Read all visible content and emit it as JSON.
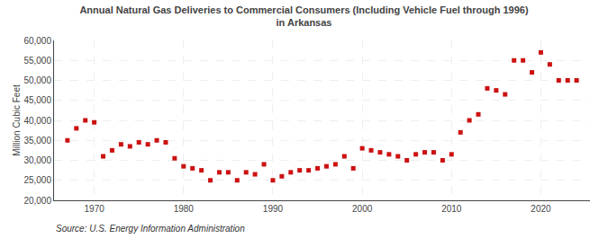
{
  "chart_data": {
    "type": "scatter",
    "title": "Annual Natural Gas Deliveries to Commercial Consumers (Including Vehicle Fuel through 1996)\nin Arkansas",
    "ylabel": "Million Cubic Feet",
    "annotations": [
      "Source: U.S. Energy Information Administration"
    ],
    "color": "#cc1111",
    "marker": "square",
    "grid": true,
    "ylim": [
      20000,
      60000
    ],
    "yticks": [
      {
        "value": 20000,
        "label": "20,000"
      },
      {
        "value": 25000,
        "label": "25,000"
      },
      {
        "value": 30000,
        "label": "30,000"
      },
      {
        "value": 35000,
        "label": "35,000"
      },
      {
        "value": 40000,
        "label": "40,000"
      },
      {
        "value": 45000,
        "label": "45,000"
      },
      {
        "value": 50000,
        "label": "50,000"
      },
      {
        "value": 55000,
        "label": "55,000"
      },
      {
        "value": 60000,
        "label": "60,000"
      }
    ],
    "xlim": [
      1965.5,
      2025.5
    ],
    "xticks": [
      1970,
      1980,
      1990,
      2000,
      2010,
      2020
    ],
    "x": [
      1967,
      1968,
      1969,
      1970,
      1971,
      1972,
      1973,
      1974,
      1975,
      1976,
      1977,
      1978,
      1979,
      1980,
      1981,
      1982,
      1983,
      1984,
      1985,
      1986,
      1987,
      1988,
      1989,
      1990,
      1991,
      1992,
      1993,
      1994,
      1995,
      1996,
      1997,
      1998,
      1999,
      2000,
      2001,
      2002,
      2003,
      2004,
      2005,
      2006,
      2007,
      2008,
      2009,
      2010,
      2011,
      2012,
      2013,
      2014,
      2015,
      2016,
      2017,
      2018,
      2019,
      2020,
      2021,
      2022,
      2023,
      2024
    ],
    "values": [
      35000,
      38000,
      40000,
      39500,
      31000,
      32500,
      34000,
      33500,
      34500,
      34000,
      35000,
      34500,
      30500,
      28500,
      28000,
      27500,
      25000,
      27000,
      27000,
      25000,
      27000,
      26500,
      29000,
      25000,
      26000,
      27000,
      27500,
      27500,
      28000,
      28500,
      29000,
      31000,
      28000,
      33000,
      32500,
      32000,
      31500,
      31000,
      30000,
      31500,
      32000,
      32000,
      30000,
      31500,
      37000,
      40000,
      41500,
      48000,
      47500,
      46500,
      55000,
      55000,
      52000,
      57000,
      54000,
      50000,
      50000,
      50000
    ]
  }
}
